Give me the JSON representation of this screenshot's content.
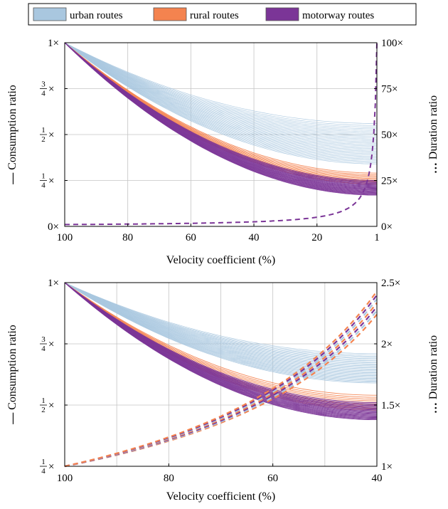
{
  "legend": {
    "entries": [
      {
        "label": "urban routes",
        "color": "#a9c7df"
      },
      {
        "label": "rural routes",
        "color": "#f4834f"
      },
      {
        "label": "motorway routes",
        "color": "#7b3597"
      }
    ]
  },
  "chart_data": [
    {
      "type": "line",
      "xlabel": "Velocity coefficient (%)",
      "ylabel_left": "Consumption ratio",
      "ylabel_right": "Duration ratio",
      "left_series_marker": "—",
      "right_series_marker": "…",
      "x_reversed": true,
      "xlim": [
        100,
        1
      ],
      "x_ticks": [
        {
          "value": 100,
          "label": "100"
        },
        {
          "value": 80,
          "label": "80"
        },
        {
          "value": 60,
          "label": "60"
        },
        {
          "value": 40,
          "label": "40"
        },
        {
          "value": 20,
          "label": "20"
        },
        {
          "value": 1,
          "label": "1"
        }
      ],
      "grid_x": [
        100,
        80,
        60,
        40,
        20,
        1
      ],
      "ylim_left": [
        0,
        1
      ],
      "y_ticks_left": [
        {
          "value": 0,
          "num": "0",
          "den": "",
          "suffix": "×"
        },
        {
          "value": 0.25,
          "num": "1",
          "den": "4",
          "suffix": "×"
        },
        {
          "value": 0.5,
          "num": "1",
          "den": "2",
          "suffix": "×"
        },
        {
          "value": 0.75,
          "num": "3",
          "den": "4",
          "suffix": "×"
        },
        {
          "value": 1,
          "num": "1",
          "den": "",
          "suffix": "×"
        }
      ],
      "ylim_right": [
        0,
        100
      ],
      "y_ticks_right": [
        {
          "value": 0,
          "label": "0×"
        },
        {
          "value": 25,
          "label": "25×"
        },
        {
          "value": 50,
          "label": "50×"
        },
        {
          "value": 75,
          "label": "75×"
        },
        {
          "value": 100,
          "label": "100×"
        }
      ],
      "grid_y_left": [
        0.25,
        0.5,
        0.75
      ],
      "consumption_endpoint_ranges": [
        {
          "group": "urban routes",
          "min": 0.34,
          "max": 0.56,
          "count": 30
        },
        {
          "group": "rural routes",
          "min": 0.23,
          "max": 0.29,
          "count": 10
        },
        {
          "group": "motorway routes",
          "min": 0.17,
          "max": 0.25,
          "count": 22
        }
      ],
      "duration_curve": {
        "formula": "100 / v",
        "from": 100,
        "to": 1
      }
    },
    {
      "type": "line",
      "xlabel": "Velocity coefficient (%)",
      "ylabel_left": "Consumption ratio",
      "ylabel_right": "Duration ratio",
      "left_series_marker": "—",
      "right_series_marker": "…",
      "x_reversed": true,
      "xlim": [
        100,
        40
      ],
      "x_ticks": [
        {
          "value": 100,
          "label": "100"
        },
        {
          "value": 80,
          "label": "80"
        },
        {
          "value": 60,
          "label": "60"
        },
        {
          "value": 40,
          "label": "40"
        }
      ],
      "grid_x": [
        100,
        90,
        80,
        70,
        60,
        50,
        40
      ],
      "ylim_left": [
        0.25,
        1
      ],
      "y_ticks_left": [
        {
          "value": 0.25,
          "num": "1",
          "den": "4",
          "suffix": "×"
        },
        {
          "value": 0.5,
          "num": "1",
          "den": "2",
          "suffix": "×"
        },
        {
          "value": 0.75,
          "num": "3",
          "den": "4",
          "suffix": "×"
        },
        {
          "value": 1,
          "num": "1",
          "den": "",
          "suffix": "×"
        }
      ],
      "ylim_right": [
        1,
        2.5
      ],
      "y_ticks_right": [
        {
          "value": 1,
          "label": "1×"
        },
        {
          "value": 1.5,
          "label": "1.5×"
        },
        {
          "value": 2,
          "label": "2×"
        },
        {
          "value": 2.5,
          "label": "2.5×"
        }
      ],
      "grid_y_left": [
        0.5,
        0.75
      ],
      "consumption_endpoint_ranges": [
        {
          "group": "urban routes",
          "min": 0.59,
          "max": 0.71,
          "count": 30
        },
        {
          "group": "rural routes",
          "min": 0.48,
          "max": 0.54,
          "count": 10
        },
        {
          "group": "motorway routes",
          "min": 0.44,
          "max": 0.51,
          "count": 22
        }
      ],
      "duration_curve": {
        "formula": "100 / v",
        "from": 100,
        "to": 40,
        "end_spread": [
          2.24,
          2.43
        ]
      }
    }
  ]
}
